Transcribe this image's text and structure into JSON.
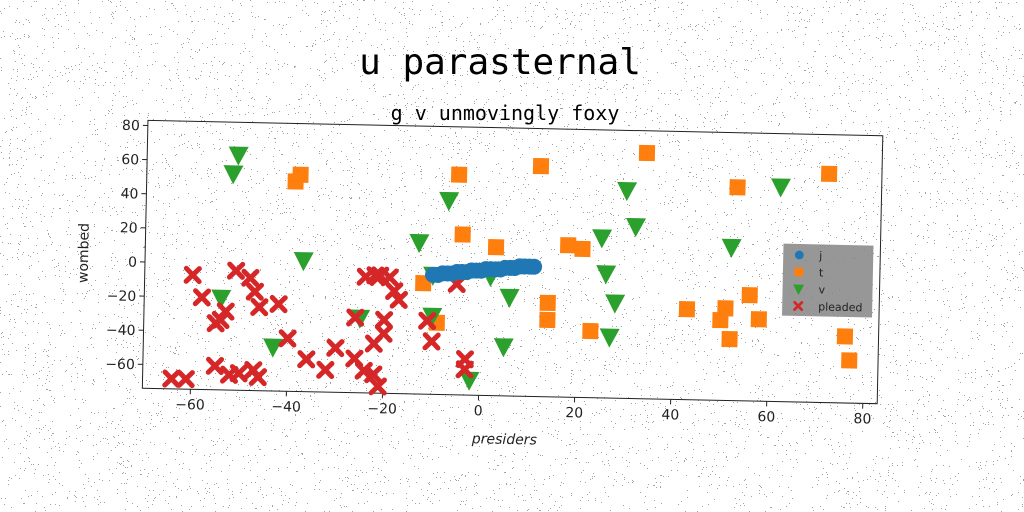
{
  "chart_data": {
    "type": "scatter",
    "title": "u parasternal",
    "subtitle": "g v unmovingly foxy",
    "xlabel": "presiders",
    "ylabel": "wombed",
    "xlim": [
      -70,
      83
    ],
    "ylim": [
      -74,
      83
    ],
    "xticks": [
      -60,
      -40,
      -20,
      0,
      20,
      40,
      60,
      80
    ],
    "yticks": [
      -60,
      -40,
      -20,
      0,
      20,
      40,
      60,
      80
    ],
    "grid": false,
    "legend_position": "right",
    "series": [
      {
        "name": "j",
        "marker": "circle",
        "color": "#1f77b4",
        "points": [
          [
            -10,
            -4
          ],
          [
            -9,
            -4
          ],
          [
            -8,
            -3
          ],
          [
            -7,
            -3
          ],
          [
            -6,
            -3
          ],
          [
            -5,
            -2
          ],
          [
            -4,
            -2
          ],
          [
            -3,
            -2
          ],
          [
            -2,
            -1
          ],
          [
            -1,
            -1
          ],
          [
            0,
            -1
          ],
          [
            1,
            0
          ],
          [
            2,
            0
          ],
          [
            3,
            0
          ],
          [
            4,
            0
          ],
          [
            5,
            1
          ],
          [
            6,
            1
          ],
          [
            7,
            1
          ],
          [
            8,
            2
          ],
          [
            9,
            2
          ],
          [
            10,
            2
          ],
          [
            11,
            2
          ]
        ]
      },
      {
        "name": "t",
        "marker": "square",
        "color": "#ff7f0e",
        "points": [
          [
            -39,
            49
          ],
          [
            -38,
            53
          ],
          [
            -5,
            55
          ],
          [
            -4,
            20
          ],
          [
            3,
            13
          ],
          [
            12,
            61
          ],
          [
            34,
            70
          ],
          [
            18,
            15
          ],
          [
            21,
            13
          ],
          [
            53,
            51
          ],
          [
            72,
            60
          ],
          [
            -12,
            -9
          ],
          [
            -9,
            -32
          ],
          [
            14,
            -19
          ],
          [
            14,
            -29
          ],
          [
            23,
            -35
          ],
          [
            43,
            -21
          ],
          [
            50,
            -27
          ],
          [
            51,
            -20
          ],
          [
            52,
            -38
          ],
          [
            56,
            -12
          ],
          [
            58,
            -26
          ],
          [
            76,
            -35
          ],
          [
            77,
            -49
          ]
        ]
      },
      {
        "name": "v",
        "marker": "triangle",
        "color": "#2ca02c",
        "points": [
          [
            -51,
            64
          ],
          [
            -52,
            53
          ],
          [
            -37,
            3
          ],
          [
            -13,
            15
          ],
          [
            -10,
            -4
          ],
          [
            -7,
            40
          ],
          [
            -54,
            -20
          ],
          [
            -43,
            -48
          ],
          [
            -25,
            -30
          ],
          [
            -10,
            -28
          ],
          [
            2,
            -4
          ],
          [
            6,
            -16
          ],
          [
            5,
            -45
          ],
          [
            -2,
            -65
          ],
          [
            25,
            20
          ],
          [
            26,
            -1
          ],
          [
            28,
            -18
          ],
          [
            27,
            -38
          ],
          [
            30,
            48
          ],
          [
            32,
            27
          ],
          [
            52,
            16
          ],
          [
            62,
            52
          ]
        ]
      },
      {
        "name": "pleaded",
        "marker": "x",
        "color": "#d62728",
        "points": [
          [
            -60,
            -7
          ],
          [
            -58,
            -20
          ],
          [
            -55,
            -35
          ],
          [
            -54,
            -33
          ],
          [
            -53,
            -28
          ],
          [
            -51,
            -4
          ],
          [
            -48,
            -8
          ],
          [
            -47,
            -16
          ],
          [
            -46,
            -25
          ],
          [
            -42,
            -23
          ],
          [
            -40,
            -43
          ],
          [
            -36,
            -55
          ],
          [
            -32,
            -61
          ],
          [
            -30,
            -48
          ],
          [
            -26,
            -30
          ],
          [
            -26,
            -54
          ],
          [
            -24,
            -61
          ],
          [
            -22,
            -45
          ],
          [
            -22,
            -63
          ],
          [
            -21,
            -70
          ],
          [
            -21,
            -5
          ],
          [
            -20,
            -31
          ],
          [
            -20,
            -39
          ],
          [
            -19,
            -6
          ],
          [
            -18,
            -14
          ],
          [
            -17,
            -19
          ],
          [
            -24,
            -6
          ],
          [
            -11,
            -31
          ],
          [
            -10,
            -43
          ],
          [
            -5,
            -9
          ],
          [
            -3,
            -53
          ],
          [
            -3,
            -59
          ],
          [
            -55,
            -60
          ],
          [
            -52,
            -65
          ],
          [
            -50,
            -64
          ],
          [
            -47,
            -62
          ],
          [
            -46,
            -66
          ],
          [
            -64,
            -68
          ],
          [
            -61,
            -68
          ],
          [
            -22,
            -5
          ]
        ]
      }
    ]
  }
}
